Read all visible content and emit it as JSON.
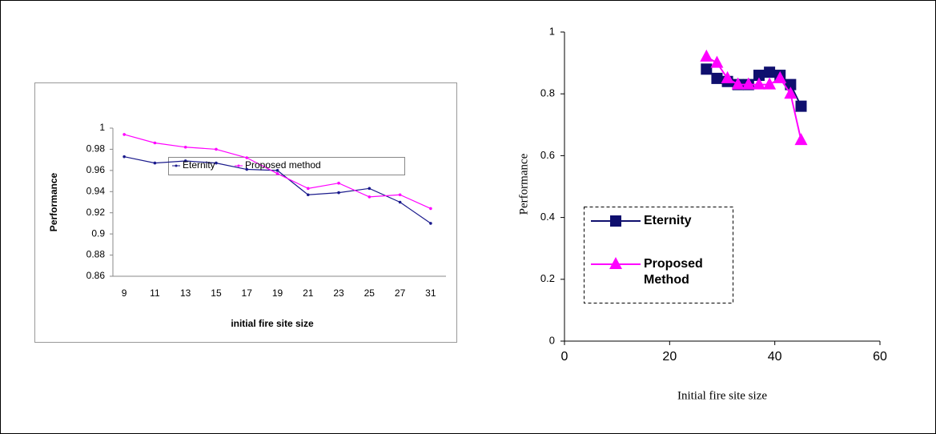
{
  "chart_data": [
    {
      "type": "line",
      "x_label": "initial fire site size",
      "y_label": "Performance",
      "categories": [
        "9",
        "11",
        "13",
        "15",
        "17",
        "19",
        "21",
        "23",
        "25",
        "27",
        "31"
      ],
      "series": [
        {
          "name": "Eternity",
          "color": "#1a1a8c",
          "values": [
            0.973,
            0.967,
            0.969,
            0.967,
            0.961,
            0.96,
            0.937,
            0.939,
            0.943,
            0.93,
            0.91
          ]
        },
        {
          "name": "Proposed method",
          "color": "#ff00ff",
          "values": [
            0.994,
            0.986,
            0.982,
            0.98,
            0.972,
            0.957,
            0.943,
            0.948,
            0.935,
            0.937,
            0.924
          ]
        }
      ],
      "ylim": [
        0.86,
        1
      ],
      "yticks": [
        0.86,
        0.88,
        0.9,
        0.92,
        0.94,
        0.96,
        0.98,
        1
      ]
    },
    {
      "type": "scatter",
      "x_label": "Initial fire site size",
      "y_label": "Performance",
      "x": [
        27,
        29,
        31,
        33,
        35,
        37,
        39,
        41,
        43,
        45
      ],
      "series": [
        {
          "name": "Eternity",
          "color": "#0f0f6e",
          "values": [
            0.88,
            0.85,
            0.84,
            0.83,
            0.83,
            0.86,
            0.87,
            0.86,
            0.83,
            0.76
          ]
        },
        {
          "name": "Proposed Method",
          "color": "#ff00ff",
          "values": [
            0.92,
            0.9,
            0.85,
            0.83,
            0.83,
            0.83,
            0.83,
            0.85,
            0.8,
            0.65
          ]
        }
      ],
      "xlim": [
        0,
        60
      ],
      "xticks": [
        0,
        20,
        40,
        60
      ],
      "ylim": [
        0,
        1
      ],
      "yticks": [
        0,
        0.2,
        0.4,
        0.6,
        0.8,
        1
      ]
    }
  ]
}
